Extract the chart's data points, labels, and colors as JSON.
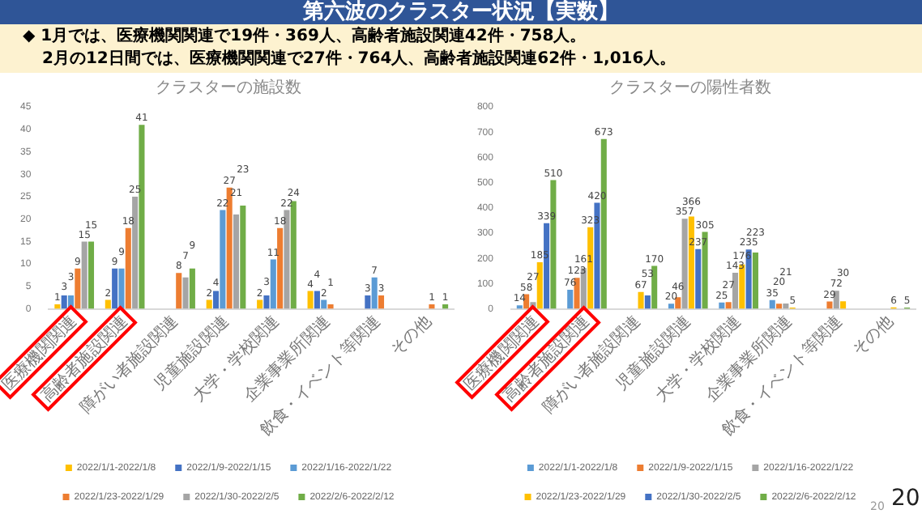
{
  "chart_data": [
    {
      "type": "bar",
      "title": "クラスターの施設数",
      "annotations": [
        "第六波のクラスター状況【実数】",
        "◆ 1月では、医療機関関連で19件・369人、高齢者施設関連42件・758人。",
        "2月の12日間では、医療機関関連で27件・764人、高齢者施設関連62件・1,016人。"
      ],
      "categories": [
        "医療機関関連",
        "高齢者施設関連",
        "障がい者施設関連",
        "児童施設関連",
        "大学・学校関連",
        "企業事業所関連",
        "飲食・イベント等関連",
        "その他"
      ],
      "series": [
        {
          "name": "2022/1/1-2022/1/8",
          "color": "#ffc000",
          "values": [
            1,
            2,
            null,
            2,
            2,
            4,
            null,
            null
          ]
        },
        {
          "name": "2022/1/9-2022/1/15",
          "color": "#4472c4",
          "values": [
            3,
            9,
            null,
            4,
            3,
            4,
            3,
            null
          ]
        },
        {
          "name": "2022/1/16-2022/1/22",
          "color": "#5b9bd5",
          "values": [
            3,
            9,
            null,
            22,
            11,
            2,
            7,
            null
          ]
        },
        {
          "name": "2022/1/23-2022/1/29",
          "color": "#ed7d31",
          "values": [
            9,
            18,
            8,
            27,
            18,
            1,
            3,
            1
          ]
        },
        {
          "name": "2022/1/30-2022/2/5",
          "color": "#a5a5a5",
          "values": [
            15,
            25,
            7,
            21,
            22,
            null,
            null,
            null
          ]
        },
        {
          "name": "2022/2/6-2022/2/12",
          "color": "#70ad47",
          "values": [
            15,
            41,
            9,
            23,
            24,
            null,
            null,
            1
          ]
        }
      ],
      "ylim": [
        0,
        45
      ],
      "yticks": [
        0,
        5,
        10,
        15,
        20,
        25,
        30,
        35,
        40,
        45
      ],
      "data_labels": true,
      "legend": "bottom"
    },
    {
      "type": "bar",
      "title": "クラスターの陽性者数",
      "annotations": [
        "20",
        "20"
      ],
      "categories": [
        "医療機関関連",
        "高齢者施設関連",
        "障がい者施設関連",
        "児童施設関連",
        "大学・学校関連",
        "企業事業所関連",
        "飲食・イベント等関連",
        "その他"
      ],
      "series": [
        {
          "name": "2022/1/1-2022/1/8",
          "color": "#5b9bd5",
          "values": [
            14,
            76,
            null,
            20,
            25,
            35,
            null,
            null
          ]
        },
        {
          "name": "2022/1/9-2022/1/15",
          "color": "#ed7d31",
          "values": [
            58,
            123,
            null,
            46,
            27,
            20,
            29,
            null
          ]
        },
        {
          "name": "2022/1/16-2022/1/22",
          "color": "#a5a5a5",
          "values": [
            27,
            161,
            null,
            357,
            143,
            21,
            72,
            null
          ]
        },
        {
          "name": "2022/1/23-2022/1/29",
          "color": "#ffc000",
          "values": [
            185,
            323,
            67,
            366,
            176,
            5,
            30,
            6
          ]
        },
        {
          "name": "2022/1/30-2022/2/5",
          "color": "#4472c4",
          "values": [
            339,
            420,
            53,
            237,
            235,
            null,
            null,
            null
          ]
        },
        {
          "name": "2022/2/6-2022/2/12",
          "color": "#70ad47",
          "values": [
            510,
            673,
            170,
            305,
            223,
            null,
            null,
            5
          ]
        }
      ],
      "ylim": [
        0,
        800
      ],
      "yticks": [
        0,
        100,
        200,
        300,
        400,
        500,
        600,
        700,
        800
      ],
      "data_labels": true,
      "legend": "bottom"
    }
  ]
}
